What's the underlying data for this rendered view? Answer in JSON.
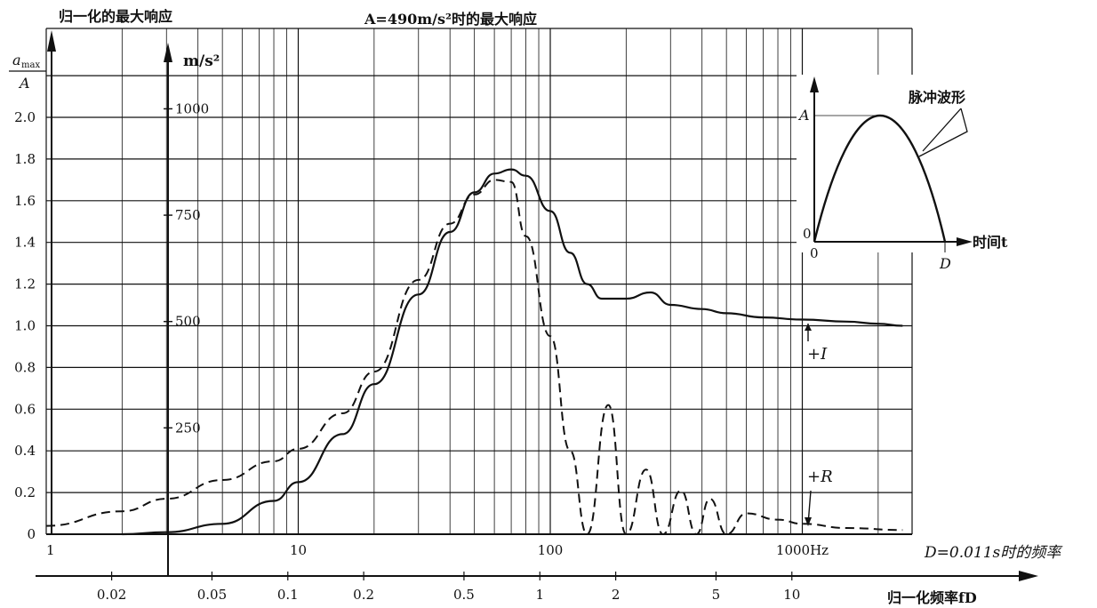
{
  "titles": {
    "left": "归一化的最大响应",
    "center": "A=490m/s²时的最大响应",
    "left_unit_top": "a",
    "left_unit_sub": "max",
    "left_unit_bottom": "A",
    "mid_unit": "m/s²",
    "freq_label": "D=0.011s时的频率",
    "xlabel2": "归一化频率fD"
  },
  "chart_data": {
    "type": "line",
    "x_scale": "log",
    "x_range_hz": [
      1,
      3000
    ],
    "y_range": [
      0,
      2.2
    ],
    "grid": true,
    "x_ticks_hz": [
      "1",
      "10",
      "100",
      "1000Hz"
    ],
    "x_ticks_fD": [
      "0.02",
      "0.05",
      "0.1",
      "0.2",
      "0.5",
      "1",
      "2",
      "5",
      "10"
    ],
    "y_ticks": [
      "0",
      "0.2",
      "0.4",
      "0.6",
      "0.8",
      "1.0",
      "1.2",
      "1.4",
      "1.6",
      "1.8",
      "2.0"
    ],
    "y2_ticks": [
      "250",
      "500",
      "750",
      "1000"
    ],
    "series": [
      {
        "name": "+I",
        "style": "solid",
        "x": [
          2,
          3,
          5,
          8,
          10,
          15,
          20,
          30,
          40,
          50,
          60,
          70,
          80,
          100,
          120,
          140,
          160,
          200,
          250,
          300,
          400,
          500,
          700,
          1000,
          1500,
          2000,
          2500
        ],
        "y": [
          0,
          0.01,
          0.05,
          0.16,
          0.25,
          0.48,
          0.72,
          1.15,
          1.45,
          1.64,
          1.73,
          1.75,
          1.72,
          1.55,
          1.35,
          1.2,
          1.13,
          1.13,
          1.16,
          1.1,
          1.08,
          1.06,
          1.04,
          1.03,
          1.02,
          1.01,
          1.0
        ]
      },
      {
        "name": "+R",
        "style": "dashed",
        "x": [
          1,
          2,
          3,
          5,
          8,
          10,
          15,
          20,
          30,
          40,
          50,
          60,
          70,
          80,
          100,
          120,
          140,
          170,
          200,
          240,
          280,
          330,
          380,
          430,
          500,
          600,
          800,
          1000,
          1500,
          2500
        ],
        "y": [
          0.04,
          0.11,
          0.17,
          0.26,
          0.35,
          0.41,
          0.58,
          0.78,
          1.22,
          1.49,
          1.63,
          1.7,
          1.69,
          1.43,
          0.95,
          0.4,
          0.0,
          0.62,
          0.0,
          0.31,
          0.0,
          0.21,
          0.0,
          0.17,
          0.0,
          0.1,
          0.07,
          0.05,
          0.03,
          0.02
        ]
      }
    ]
  },
  "inset": {
    "title": "脉冲波形",
    "y_label": "A",
    "zero_y": "0",
    "zero_x": "0",
    "end_x": "D",
    "x_axis_label": "时间t"
  },
  "labels": {
    "series_I": "+I",
    "series_R": "+R"
  }
}
